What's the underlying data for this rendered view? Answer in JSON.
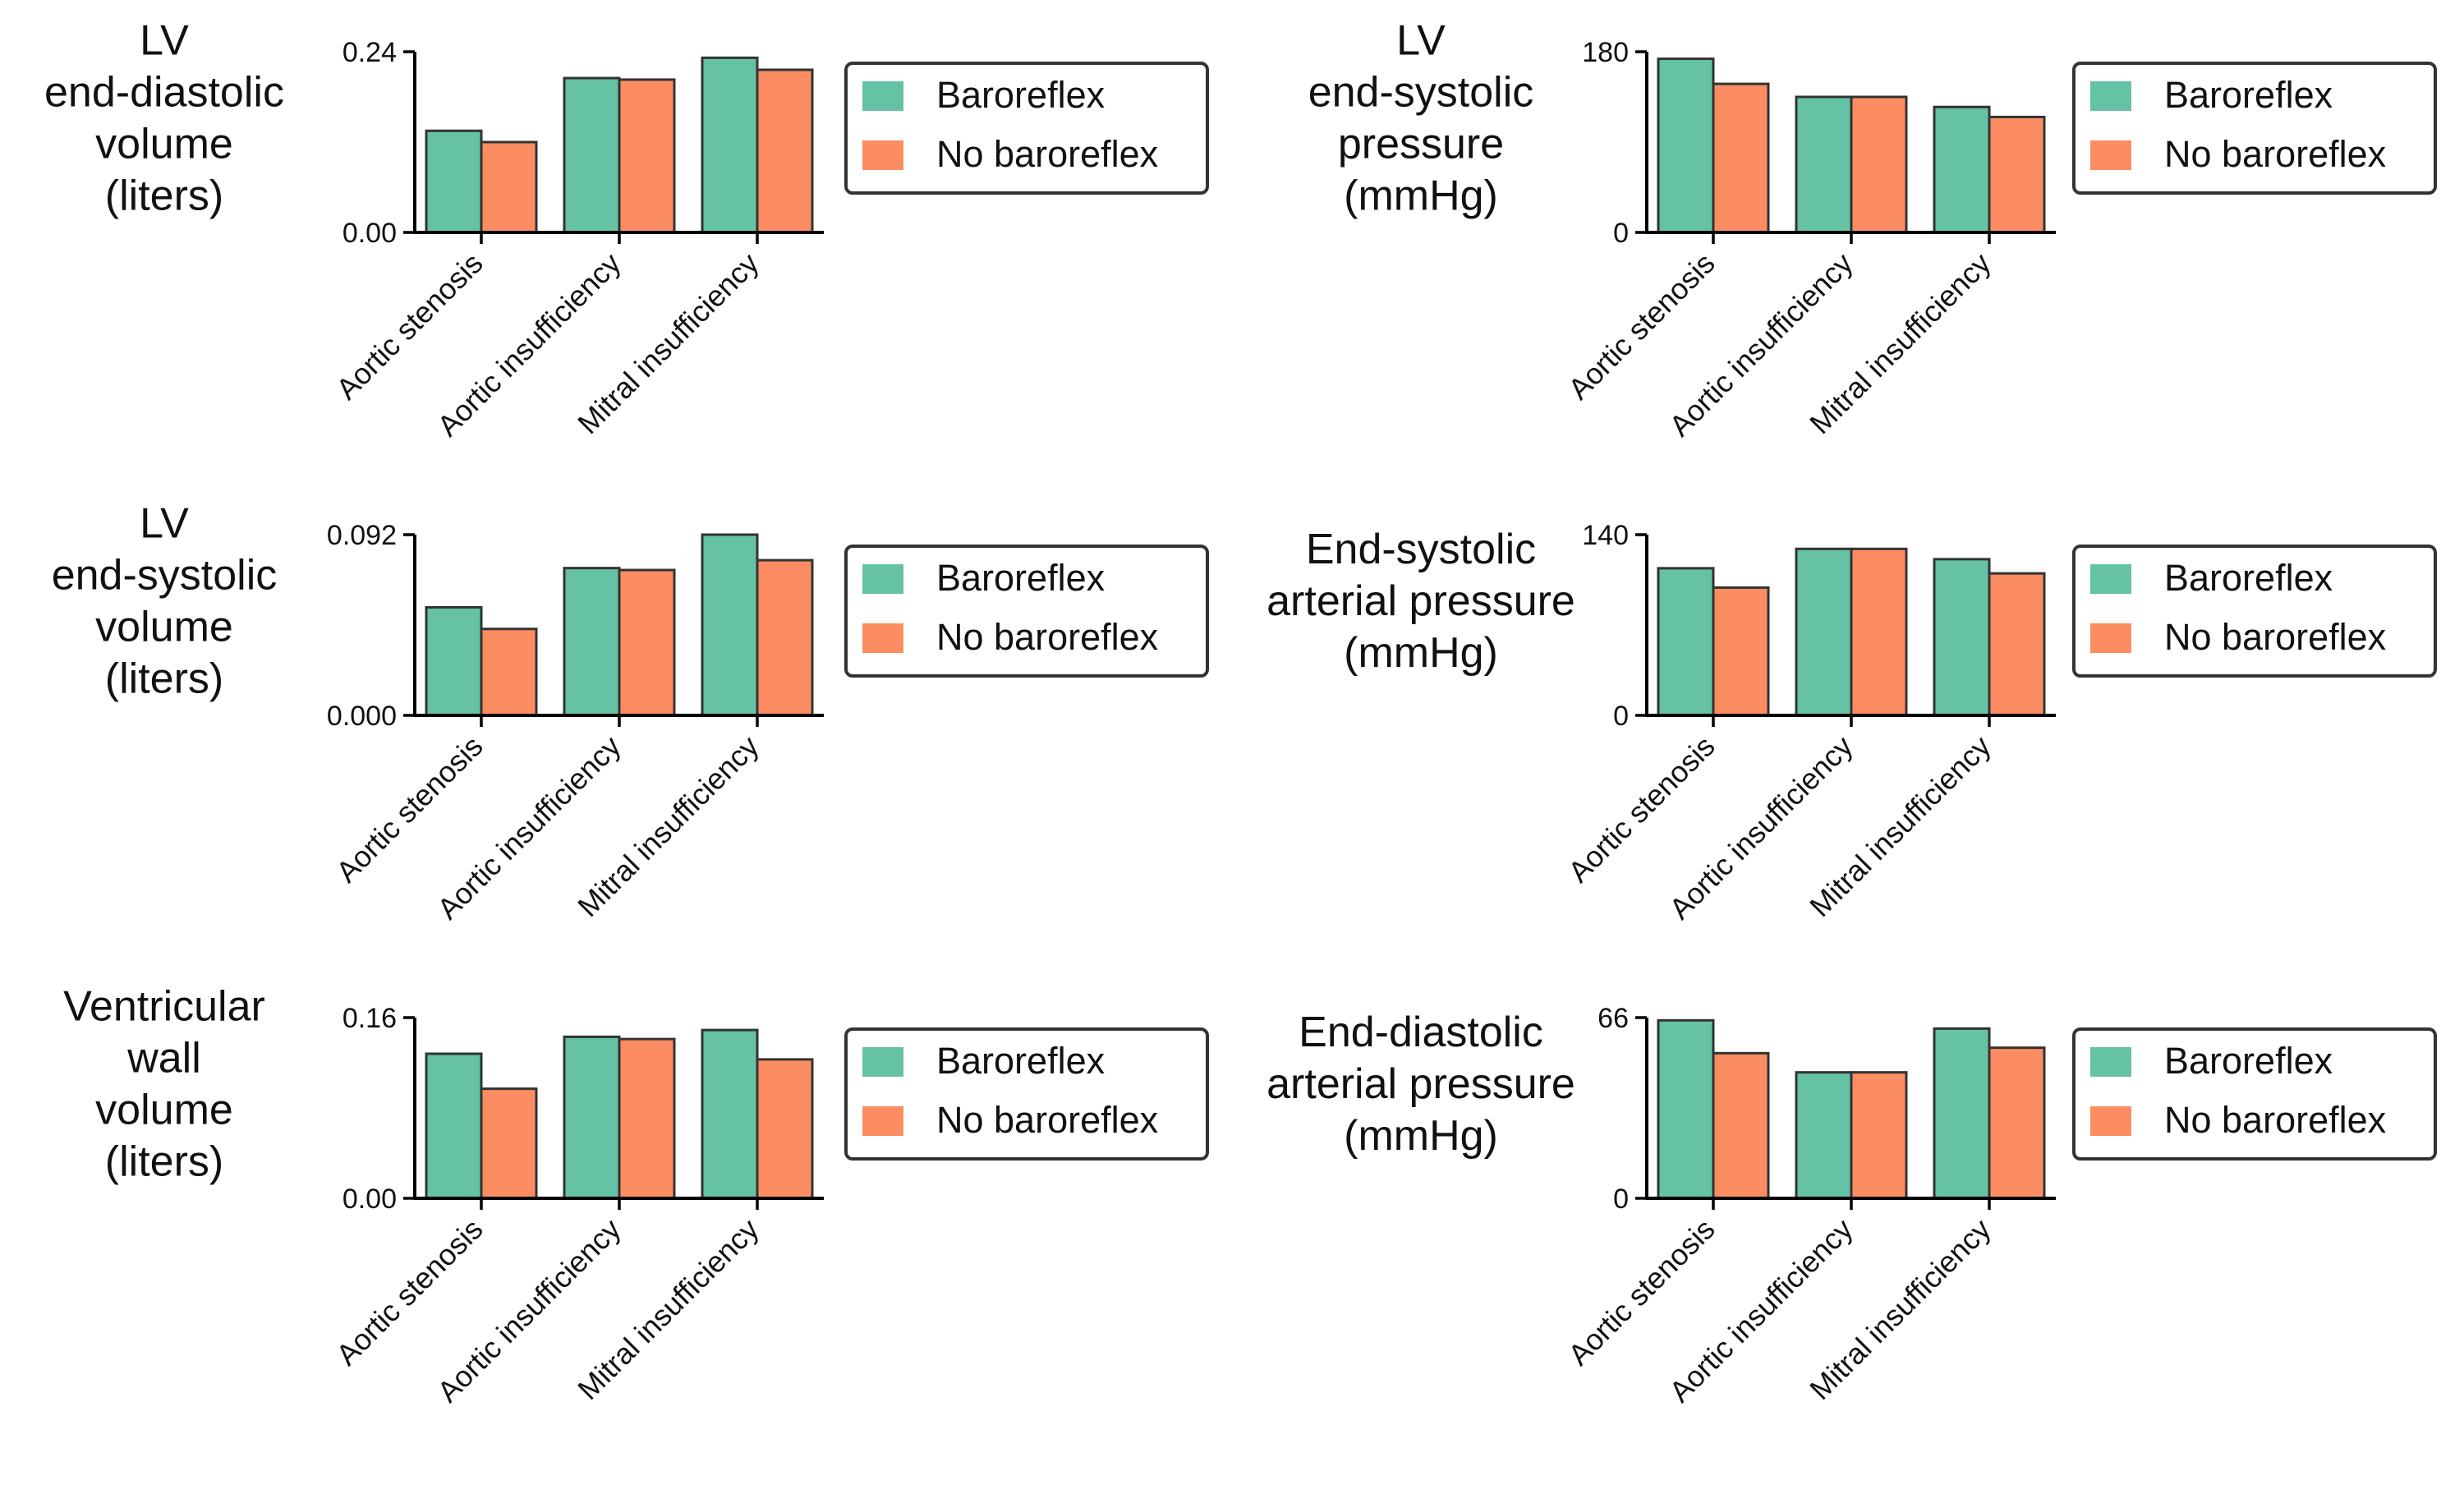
{
  "colors": {
    "series_a": "#66c2a5",
    "series_b": "#fc8d62",
    "edge": "#333333"
  },
  "legend": {
    "labels": [
      "Baroreflex",
      "No baroreflex"
    ]
  },
  "chart_data": [
    {
      "type": "bar",
      "ylabel_lines": [
        "LV",
        "end-diastolic",
        "volume",
        "(liters)"
      ],
      "categories": [
        "Aortic stenosis",
        "Aortic insufficiency",
        "Mitral insufficiency"
      ],
      "ylim": [
        0,
        0.24
      ],
      "yticks": [
        "0.00",
        "0.24"
      ],
      "series": [
        {
          "name": "Baroreflex",
          "values": [
            0.135,
            0.205,
            0.232
          ]
        },
        {
          "name": "No baroreflex",
          "values": [
            0.12,
            0.203,
            0.216
          ]
        }
      ],
      "legend": "upper right outside"
    },
    {
      "type": "bar",
      "ylabel_lines": [
        "LV",
        "end-systolic",
        "pressure",
        "(mmHg)"
      ],
      "categories": [
        "Aortic stenosis",
        "Aortic insufficiency",
        "Mitral insufficiency"
      ],
      "ylim": [
        0,
        180
      ],
      "yticks": [
        "0",
        "180"
      ],
      "series": [
        {
          "name": "Baroreflex",
          "values": [
            173,
            135,
            125
          ]
        },
        {
          "name": "No baroreflex",
          "values": [
            148,
            135,
            115
          ]
        }
      ],
      "legend": "upper right outside"
    },
    {
      "type": "bar",
      "ylabel_lines": [
        "LV",
        "end-systolic",
        "volume",
        "(liters)"
      ],
      "categories": [
        "Aortic stenosis",
        "Aortic insufficiency",
        "Mitral insufficiency"
      ],
      "ylim": [
        0,
        0.092
      ],
      "yticks": [
        "0.000",
        "0.092"
      ],
      "series": [
        {
          "name": "Baroreflex",
          "values": [
            0.055,
            0.075,
            0.092
          ]
        },
        {
          "name": "No baroreflex",
          "values": [
            0.044,
            0.074,
            0.079
          ]
        }
      ],
      "legend": "upper right outside"
    },
    {
      "type": "bar",
      "ylabel_lines": [
        "End-systolic",
        "arterial pressure",
        "(mmHg)"
      ],
      "categories": [
        "Aortic stenosis",
        "Aortic insufficiency",
        "Mitral insufficiency"
      ],
      "ylim": [
        0,
        140
      ],
      "yticks": [
        "0",
        "140"
      ],
      "series": [
        {
          "name": "Baroreflex",
          "values": [
            114,
            129,
            121
          ]
        },
        {
          "name": "No baroreflex",
          "values": [
            99,
            129,
            110
          ]
        }
      ],
      "legend": "upper right outside"
    },
    {
      "type": "bar",
      "ylabel_lines": [
        "Ventricular",
        "wall",
        "volume",
        "(liters)"
      ],
      "categories": [
        "Aortic stenosis",
        "Aortic insufficiency",
        "Mitral insufficiency"
      ],
      "ylim": [
        0,
        0.16
      ],
      "yticks": [
        "0.00",
        "0.16"
      ],
      "series": [
        {
          "name": "Baroreflex",
          "values": [
            0.128,
            0.143,
            0.149
          ]
        },
        {
          "name": "No baroreflex",
          "values": [
            0.097,
            0.141,
            0.123
          ]
        }
      ],
      "legend": "upper right outside"
    },
    {
      "type": "bar",
      "ylabel_lines": [
        "End-diastolic",
        "arterial pressure",
        "(mmHg)"
      ],
      "categories": [
        "Aortic stenosis",
        "Aortic insufficiency",
        "Mitral insufficiency"
      ],
      "ylim": [
        0,
        66
      ],
      "yticks": [
        "0",
        "66"
      ],
      "series": [
        {
          "name": "Baroreflex",
          "values": [
            65,
            46,
            62
          ]
        },
        {
          "name": "No baroreflex",
          "values": [
            53,
            46,
            55
          ]
        }
      ],
      "legend": "upper right outside"
    }
  ]
}
